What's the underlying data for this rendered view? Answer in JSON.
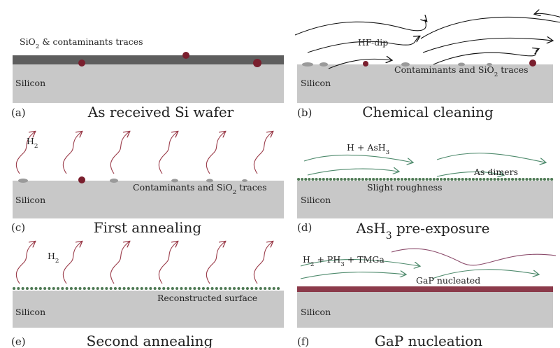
{
  "panels": [
    {
      "tag": "(a)",
      "caption": [
        "As received Si wafer"
      ],
      "labels": [
        [
          "SiO",
          "2",
          " & contaminants traces"
        ],
        [
          "Silicon"
        ]
      ]
    },
    {
      "tag": "(b)",
      "caption": [
        "Chemical cleaning"
      ],
      "labels": [
        [
          "HF-dip"
        ],
        [
          "Contaminants and SiO",
          "2",
          " traces"
        ],
        [
          "Silicon"
        ]
      ]
    },
    {
      "tag": "(c)",
      "caption": [
        "First annealing"
      ],
      "labels": [
        [
          "H",
          "2"
        ],
        [
          "Contaminants and SiO",
          "2",
          " traces"
        ],
        [
          "Silicon"
        ]
      ]
    },
    {
      "tag": "(d)",
      "caption": [
        "AsH",
        "3",
        " pre-exposure"
      ],
      "labels": [
        [
          "H + AsH",
          "3"
        ],
        [
          "As dimers"
        ],
        [
          "Slight  roughness"
        ],
        [
          "Silicon"
        ]
      ]
    },
    {
      "tag": "(e)",
      "caption": [
        "Second annealing"
      ],
      "labels": [
        [
          "H",
          "2"
        ],
        [
          "Reconstructed surface"
        ],
        [
          "Silicon"
        ]
      ]
    },
    {
      "tag": "(f)",
      "caption": [
        "GaP nucleation"
      ],
      "labels": [
        [
          "H",
          "2",
          " + PH",
          "3",
          " + TMGa"
        ],
        [
          "GaP nucleated"
        ],
        [
          "Silicon"
        ]
      ]
    }
  ]
}
